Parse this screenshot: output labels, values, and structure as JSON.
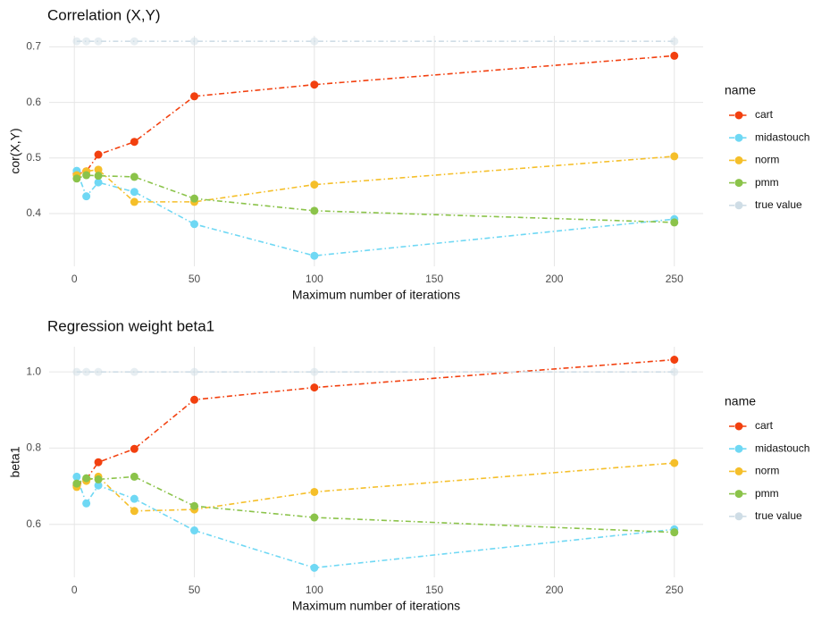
{
  "chart_data": [
    {
      "type": "line",
      "title": "Correlation (X,Y)",
      "x_label": "Maximum number of iterations",
      "y_label": "cor(X,Y)",
      "legend_title": "name",
      "x": [
        1,
        5,
        10,
        25,
        50,
        100,
        250
      ],
      "xlim": [
        -10.5,
        262
      ],
      "xticks": [
        0,
        50,
        100,
        150,
        200,
        250
      ],
      "ylim": [
        0.305,
        0.72
      ],
      "yticks": [
        0.4,
        0.5,
        0.6,
        0.7
      ],
      "grid": true,
      "legend": "right",
      "series": [
        {
          "name": "cart",
          "color": "#f2400f",
          "values": [
            0.471,
            0.476,
            0.506,
            0.529,
            0.611,
            0.632,
            0.684
          ]
        },
        {
          "name": "midastouch",
          "color": "#6fd8f4",
          "values": [
            0.477,
            0.431,
            0.456,
            0.439,
            0.381,
            0.324,
            0.39
          ]
        },
        {
          "name": "norm",
          "color": "#f5bf2a",
          "values": [
            0.469,
            0.476,
            0.479,
            0.421,
            0.421,
            0.452,
            0.503
          ]
        },
        {
          "name": "pmm",
          "color": "#8bc34a",
          "values": [
            0.463,
            0.469,
            0.468,
            0.466,
            0.427,
            0.405,
            0.384
          ]
        },
        {
          "name": "true value",
          "color": "#cfdde6",
          "values": [
            0.71,
            0.71,
            0.71,
            0.71,
            0.71,
            0.71,
            0.71
          ]
        }
      ]
    },
    {
      "type": "line",
      "title": "Regression weight beta1",
      "x_label": "Maximum number of iterations",
      "y_label": "beta1",
      "legend_title": "name",
      "x": [
        1,
        5,
        10,
        25,
        50,
        100,
        250
      ],
      "xlim": [
        -10.5,
        262
      ],
      "xticks": [
        0,
        50,
        100,
        150,
        200,
        250
      ],
      "ylim": [
        0.461,
        1.066
      ],
      "yticks": [
        0.6,
        0.8,
        {
          "value": 1.0,
          "label": "1.0"
        }
      ],
      "grid": true,
      "legend": "right",
      "series": [
        {
          "name": "cart",
          "color": "#f2400f",
          "values": [
            0.702,
            0.718,
            0.763,
            0.798,
            0.927,
            0.959,
            1.032
          ]
        },
        {
          "name": "midastouch",
          "color": "#6fd8f4",
          "values": [
            0.725,
            0.655,
            0.702,
            0.667,
            0.584,
            0.486,
            0.587
          ]
        },
        {
          "name": "norm",
          "color": "#f5bf2a",
          "values": [
            0.698,
            0.714,
            0.725,
            0.635,
            0.639,
            0.685,
            0.761
          ]
        },
        {
          "name": "pmm",
          "color": "#8bc34a",
          "values": [
            0.707,
            0.721,
            0.718,
            0.725,
            0.648,
            0.618,
            0.579
          ]
        },
        {
          "name": "true value",
          "color": "#cfdde6",
          "values": [
            1.0,
            1.0,
            1.0,
            1.0,
            1.0,
            1.0,
            1.0
          ]
        }
      ]
    }
  ]
}
